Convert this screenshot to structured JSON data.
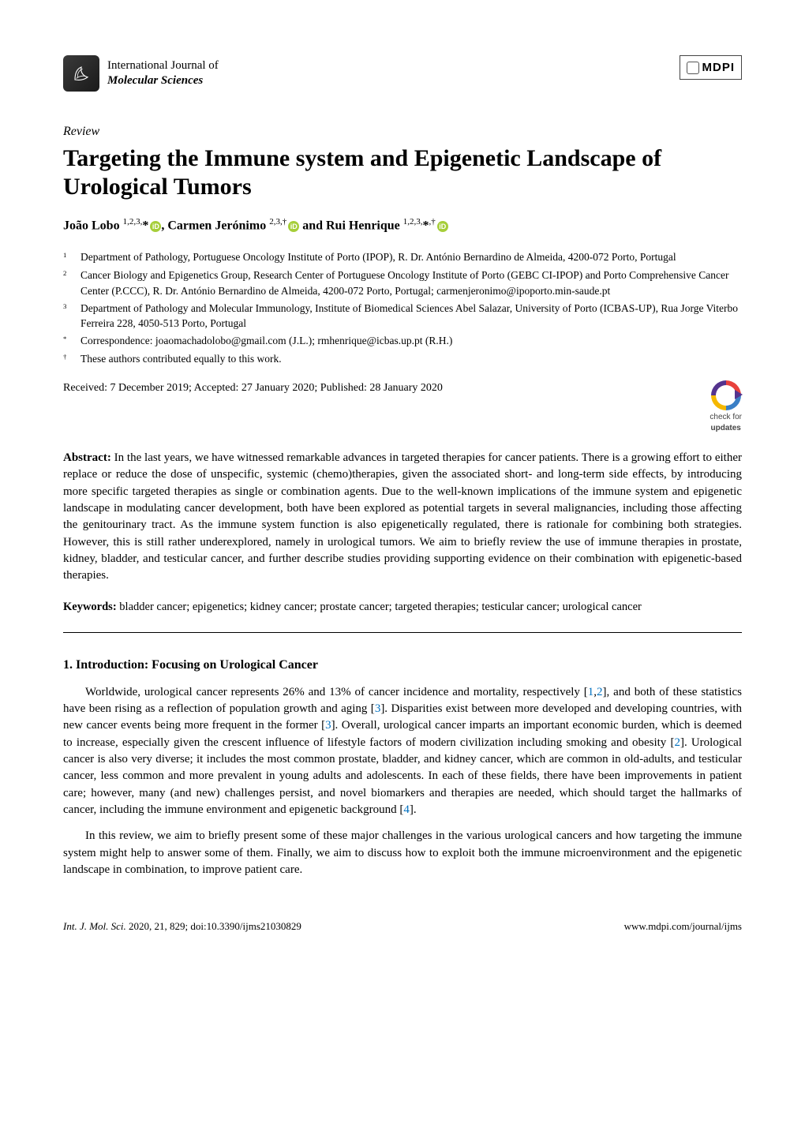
{
  "journal": {
    "line1": "International Journal of",
    "line2": "Molecular Sciences"
  },
  "publisher_logo": "MDPI",
  "article_type": "Review",
  "title": "Targeting the Immune system and Epigenetic Landscape of Urological Tumors",
  "authors_html": "João Lobo <sup>1,2,3,</sup>*<span class='orcid' data-name='orcid-icon' data-interactable='false'>iD</span>, Carmen Jerónimo <sup>2,3,†</sup><span class='orcid' data-name='orcid-icon' data-interactable='false'>iD</span> and Rui Henrique <sup>1,2,3,</sup>*<sup>,†</sup><span class='orcid' data-name='orcid-icon' data-interactable='false'>iD</span>",
  "affiliations": [
    {
      "sup": "1",
      "text": "Department of Pathology, Portuguese Oncology Institute of Porto (IPOP), R. Dr. António Bernardino de Almeida, 4200-072 Porto, Portugal"
    },
    {
      "sup": "2",
      "text": "Cancer Biology and Epigenetics Group, Research Center of Portuguese Oncology Institute of Porto (GEBC CI-IPOP) and Porto Comprehensive Cancer Center (P.CCC), R. Dr. António Bernardino de Almeida, 4200-072 Porto, Portugal; carmenjeronimo@ipoporto.min-saude.pt"
    },
    {
      "sup": "3",
      "text": "Department of Pathology and Molecular Immunology, Institute of Biomedical Sciences Abel Salazar, University of Porto (ICBAS-UP), Rua Jorge Viterbo Ferreira 228, 4050-513 Porto, Portugal"
    },
    {
      "sup": "*",
      "text": "Correspondence: joaomachadolobo@gmail.com (J.L.); rmhenrique@icbas.up.pt (R.H.)"
    },
    {
      "sup": "†",
      "text": "These authors contributed equally to this work."
    }
  ],
  "pub_dates": "Received: 7 December 2019; Accepted: 27 January 2020; Published: 28 January 2020",
  "check_updates": {
    "line1": "check for",
    "line2": "updates"
  },
  "abstract_label": "Abstract:",
  "abstract": " In the last years, we have witnessed remarkable advances in targeted therapies for cancer patients. There is a growing effort to either replace or reduce the dose of unspecific, systemic (chemo)therapies, given the associated short- and long-term side effects, by introducing more specific targeted therapies as single or combination agents. Due to the well-known implications of the immune system and epigenetic landscape in modulating cancer development, both have been explored as potential targets in several malignancies, including those affecting the genitourinary tract. As the immune system function is also epigenetically regulated, there is rationale for combining both strategies. However, this is still rather underexplored, namely in urological tumors. We aim to briefly review the use of immune therapies in prostate, kidney, bladder, and testicular cancer, and further describe studies providing supporting evidence on their combination with epigenetic-based therapies.",
  "keywords_label": "Keywords:",
  "keywords": " bladder cancer; epigenetics; kidney cancer; prostate cancer; targeted therapies; testicular cancer; urological cancer",
  "section_heading": "1. Introduction: Focusing on Urological Cancer",
  "para1_parts": [
    "Worldwide, urological cancer represents 26% and 13% of cancer incidence and mortality, respectively [",
    "1",
    ",",
    "2",
    "], and both of these statistics have been rising as a reflection of population growth and aging [",
    "3",
    "]. Disparities exist between more developed and developing countries, with new cancer events being more frequent in the former [",
    "3",
    "]. Overall, urological cancer imparts an important economic burden, which is deemed to increase, especially given the crescent influence of lifestyle factors of modern civilization including smoking and obesity [",
    "2",
    "]. Urological cancer is also very diverse; it includes the most common prostate, bladder, and kidney cancer, which are common in old-adults, and testicular cancer, less common and more prevalent in young adults and adolescents. In each of these fields, there have been improvements in patient care; however, many (and new) challenges persist, and novel biomarkers and therapies are needed, which should target the hallmarks of cancer, including the immune environment and epigenetic background [",
    "4",
    "]."
  ],
  "para2": "In this review, we aim to briefly present some of these major challenges in the various urological cancers and how targeting the immune system might help to answer some of them. Finally, we aim to discuss how to exploit both the immune microenvironment and the epigenetic landscape in combination, to improve patient care.",
  "footer": {
    "left_journal": "Int. J. Mol. Sci.",
    "left_rest": " 2020, 21, 829; doi:10.3390/ijms21030829",
    "right": "www.mdpi.com/journal/ijms"
  },
  "colors": {
    "cite_link": "#0070c0",
    "orcid_bg": "#a6ce39",
    "text": "#000000",
    "bg": "#ffffff"
  }
}
